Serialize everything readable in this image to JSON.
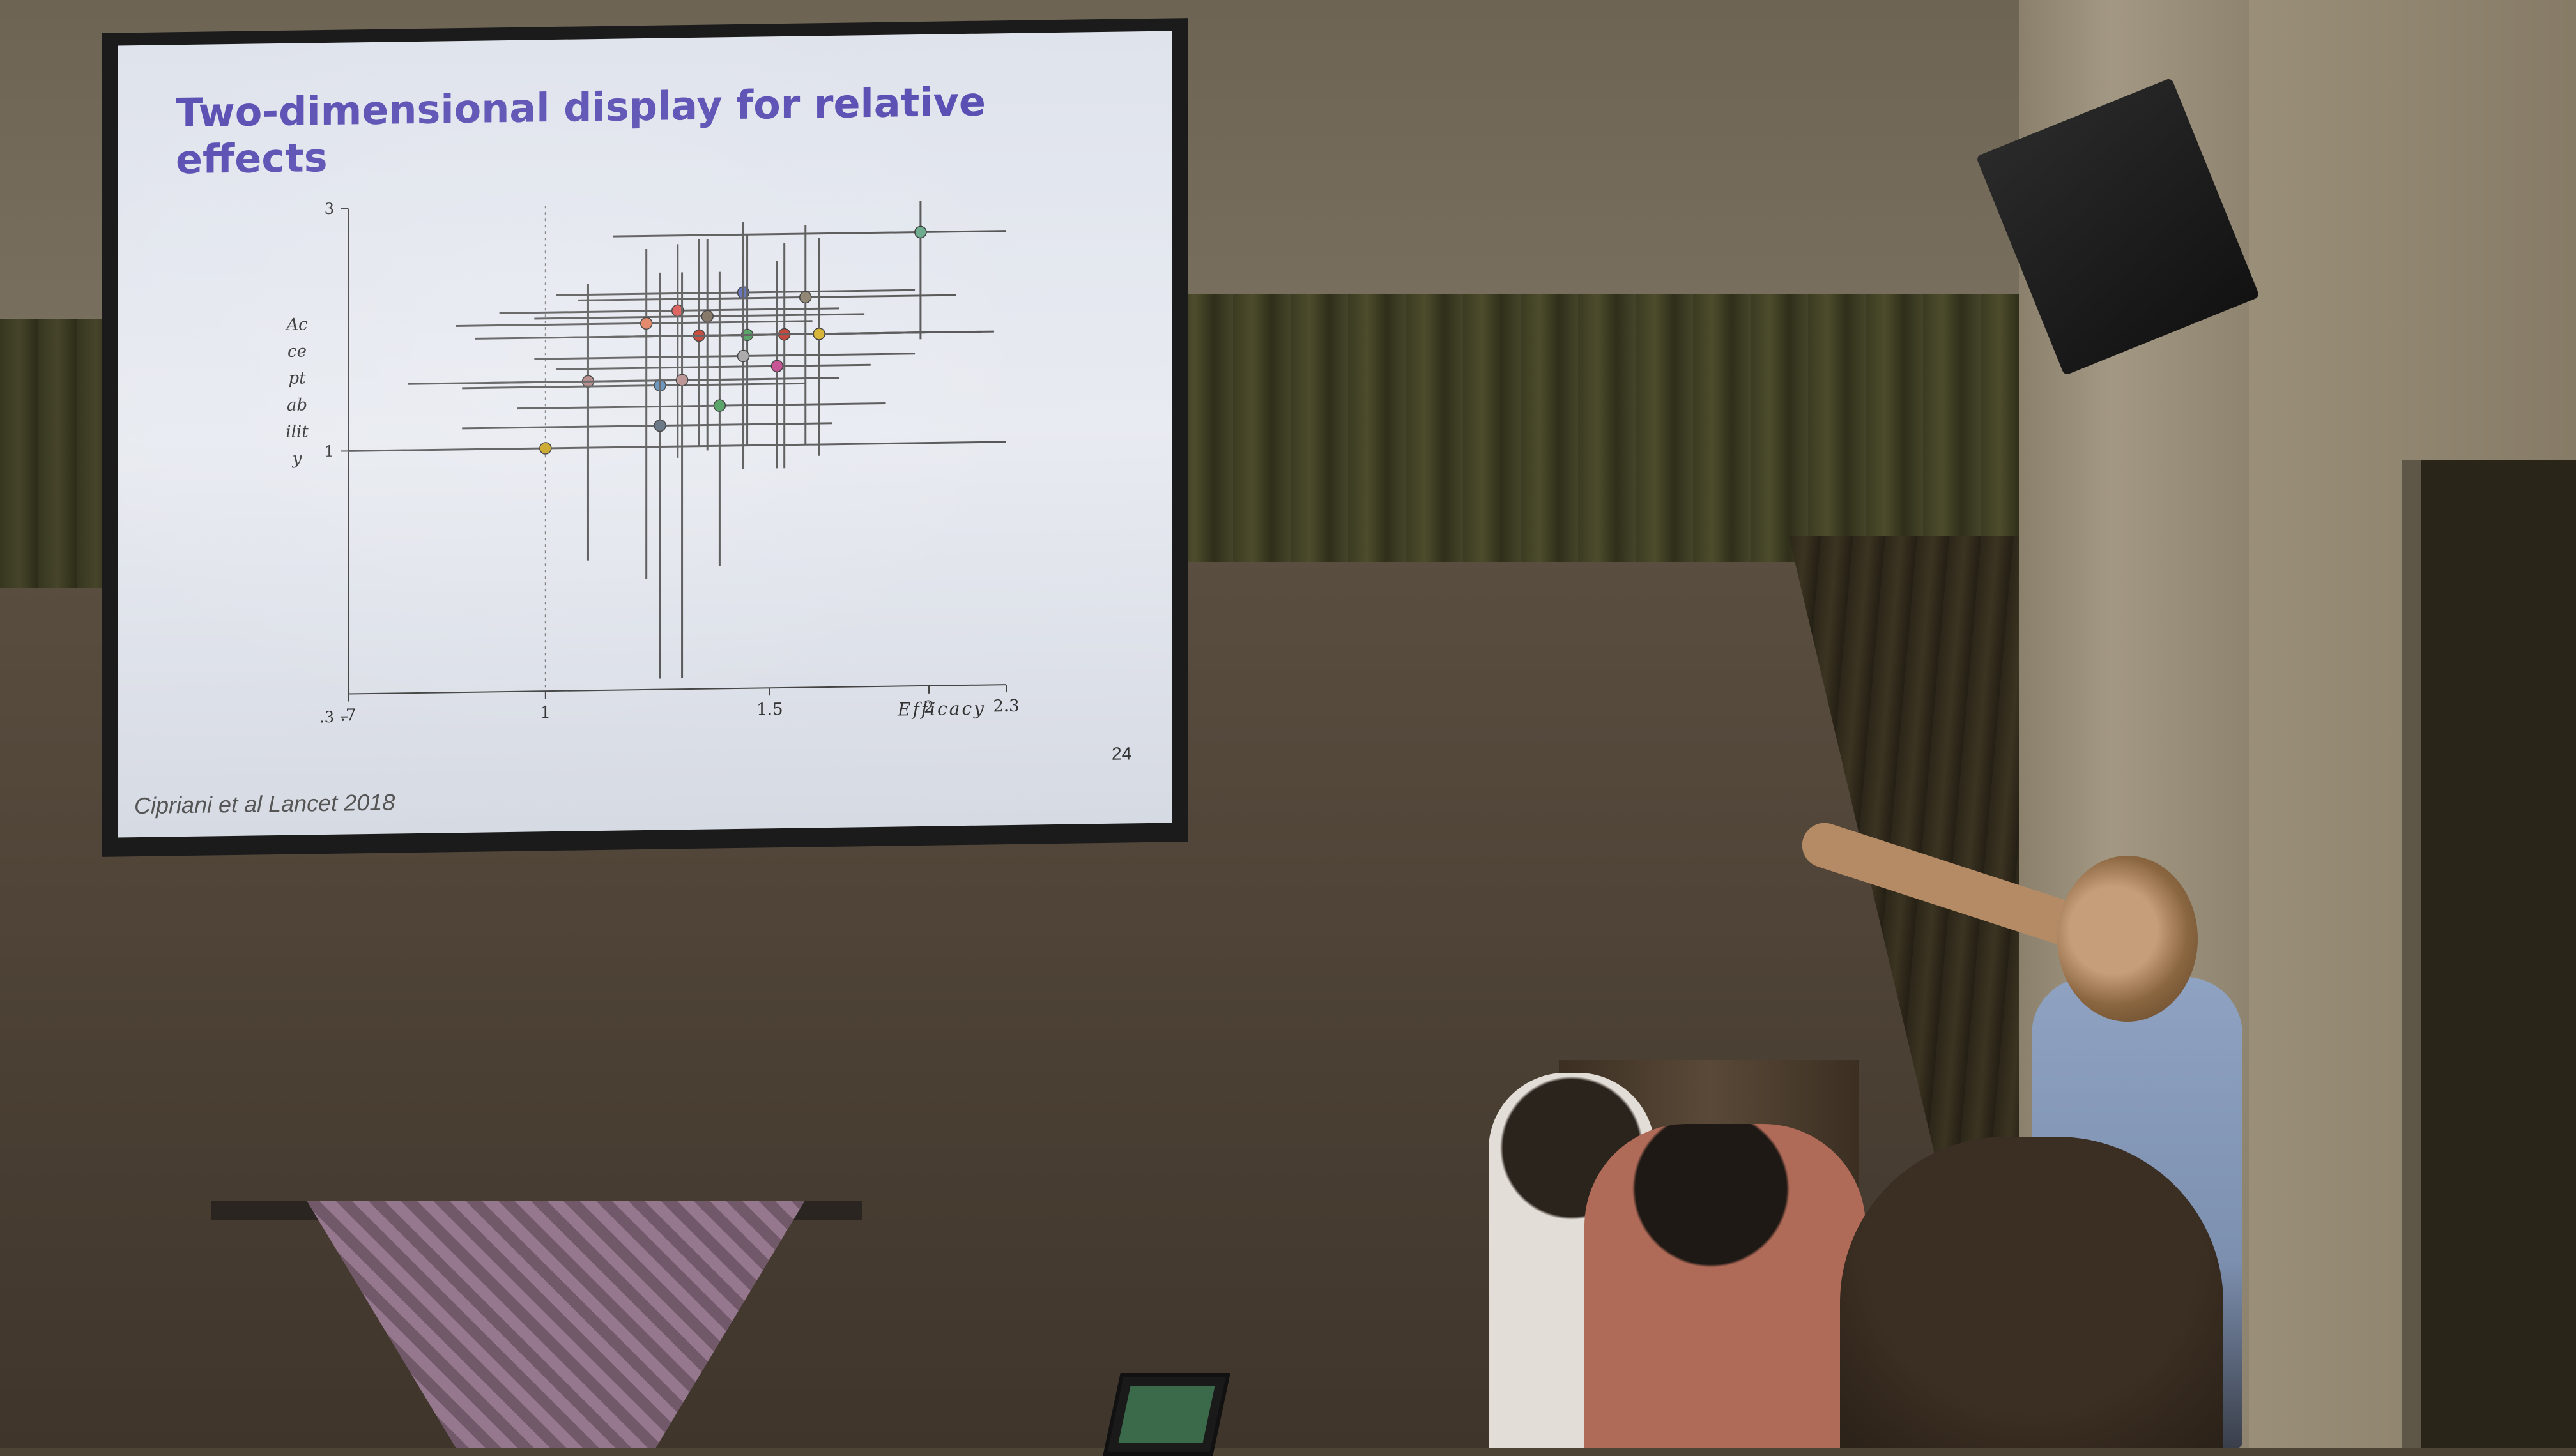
{
  "slide": {
    "title": "Two-dimensional display for relative effects",
    "citation": "Cipriani et al Lancet 2018",
    "page_number": "24"
  },
  "chart_data": {
    "type": "scatter",
    "title": "",
    "xlabel": "Efficacy",
    "ylabel": "Acceptability",
    "xscale": "log",
    "yscale": "log",
    "xlim": [
      0.7,
      2.3
    ],
    "ylim": [
      0.333,
      3
    ],
    "x_ticks": [
      ".7",
      "1",
      "1.5",
      "2",
      "2.3"
    ],
    "y_ticks": [
      "3",
      "1",
      ".3"
    ],
    "reference_line_x": 1,
    "points": [
      {
        "x": 1.0,
        "y": 1.0,
        "x_lo": 0.7,
        "x_hi": 2.3,
        "y_lo": 1.0,
        "y_hi": 1.0,
        "color": "#c7a21a"
      },
      {
        "x": 1.97,
        "y": 2.6,
        "x_lo": 1.13,
        "x_hi": 2.3,
        "y_lo": 1.6,
        "y_hi": 3.0,
        "color": "#6aa88a"
      },
      {
        "x": 1.43,
        "y": 2.0,
        "x_lo": 1.02,
        "x_hi": 1.95,
        "y_lo": 1.05,
        "y_hi": 2.75,
        "color": "#5a6bb5"
      },
      {
        "x": 1.6,
        "y": 1.95,
        "x_lo": 1.06,
        "x_hi": 2.1,
        "y_lo": 1.0,
        "y_hi": 2.7,
        "color": "#8a7e6a"
      },
      {
        "x": 1.27,
        "y": 1.85,
        "x_lo": 0.92,
        "x_hi": 1.7,
        "y_lo": 0.95,
        "y_hi": 2.5,
        "color": "#d9534f"
      },
      {
        "x": 1.34,
        "y": 1.8,
        "x_lo": 0.98,
        "x_hi": 1.78,
        "y_lo": 0.98,
        "y_hi": 2.55,
        "color": "#7a6a5a"
      },
      {
        "x": 1.2,
        "y": 1.75,
        "x_lo": 0.85,
        "x_hi": 1.62,
        "y_lo": 0.55,
        "y_hi": 2.45,
        "color": "#e07b5a"
      },
      {
        "x": 1.32,
        "y": 1.65,
        "x_lo": 0.88,
        "x_hi": 2.0,
        "y_lo": 1.0,
        "y_hi": 2.55,
        "color": "#c0392b"
      },
      {
        "x": 1.44,
        "y": 1.65,
        "x_lo": 1.0,
        "x_hi": 2.25,
        "y_lo": 1.0,
        "y_hi": 2.6,
        "color": "#4a9a5a"
      },
      {
        "x": 1.54,
        "y": 1.65,
        "x_lo": 1.05,
        "x_hi": 2.2,
        "y_lo": 0.9,
        "y_hi": 2.5,
        "color": "#c0392b"
      },
      {
        "x": 1.64,
        "y": 1.65,
        "x_lo": 1.1,
        "x_hi": 2.15,
        "y_lo": 0.95,
        "y_hi": 2.55,
        "color": "#d4b02a"
      },
      {
        "x": 1.43,
        "y": 1.5,
        "x_lo": 0.98,
        "x_hi": 1.95,
        "y_lo": 0.9,
        "y_hi": 2.35,
        "color": "#a4a4a4"
      },
      {
        "x": 1.52,
        "y": 1.43,
        "x_lo": 1.02,
        "x_hi": 1.8,
        "y_lo": 0.9,
        "y_hi": 2.3,
        "color": "#c2458a"
      },
      {
        "x": 1.08,
        "y": 1.35,
        "x_lo": 0.78,
        "x_hi": 1.5,
        "y_lo": 0.6,
        "y_hi": 2.1,
        "color": "#b08080"
      },
      {
        "x": 1.23,
        "y": 1.32,
        "x_lo": 0.86,
        "x_hi": 1.6,
        "y_lo": 0.35,
        "y_hi": 2.2,
        "color": "#5a8ab5"
      },
      {
        "x": 1.28,
        "y": 1.35,
        "x_lo": 0.9,
        "x_hi": 1.7,
        "y_lo": 0.35,
        "y_hi": 2.2,
        "color": "#b58a8a"
      },
      {
        "x": 1.37,
        "y": 1.2,
        "x_lo": 0.95,
        "x_hi": 1.85,
        "y_lo": 0.58,
        "y_hi": 2.2,
        "color": "#4a9a5a"
      },
      {
        "x": 1.23,
        "y": 1.1,
        "x_lo": 0.86,
        "x_hi": 1.68,
        "y_lo": 0.35,
        "y_hi": 2.0,
        "color": "#5a6a7a"
      }
    ],
    "grid": false,
    "legend": "none"
  }
}
